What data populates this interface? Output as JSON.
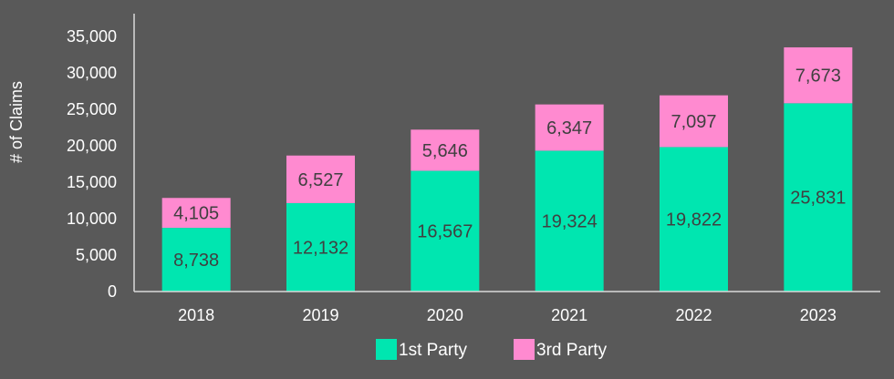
{
  "chart_data": {
    "type": "bar",
    "stacked": true,
    "title": "",
    "xlabel": "",
    "ylabel": "# of Claims",
    "categories": [
      "2018",
      "2019",
      "2020",
      "2021",
      "2022",
      "2023"
    ],
    "series": [
      {
        "name": "1st Party",
        "color": "#00e6b0",
        "values": [
          8738,
          12132,
          16567,
          19324,
          19822,
          25831
        ]
      },
      {
        "name": "3rd Party",
        "color": "#ff8ad0",
        "values": [
          4105,
          6527,
          5646,
          6347,
          7097,
          7673
        ]
      }
    ],
    "data_labels": [
      [
        "8,738",
        "12,132",
        "16,567",
        "19,324",
        "19,822",
        "25,831"
      ],
      [
        "4,105",
        "6,527",
        "5,646",
        "6,347",
        "7,097",
        "7,673"
      ]
    ],
    "ylim": [
      0,
      35000
    ],
    "yticks": [
      0,
      5000,
      10000,
      15000,
      20000,
      25000,
      30000,
      35000
    ],
    "ytick_labels": [
      "0",
      "5,000",
      "10,000",
      "15,000",
      "20,000",
      "25,000",
      "30,000",
      "35,000"
    ],
    "grid": false,
    "legend_position": "bottom"
  },
  "colors": {
    "background": "#595959",
    "axis": "#d9d9d9",
    "text": "#ffffff",
    "data_label": "#404040"
  }
}
